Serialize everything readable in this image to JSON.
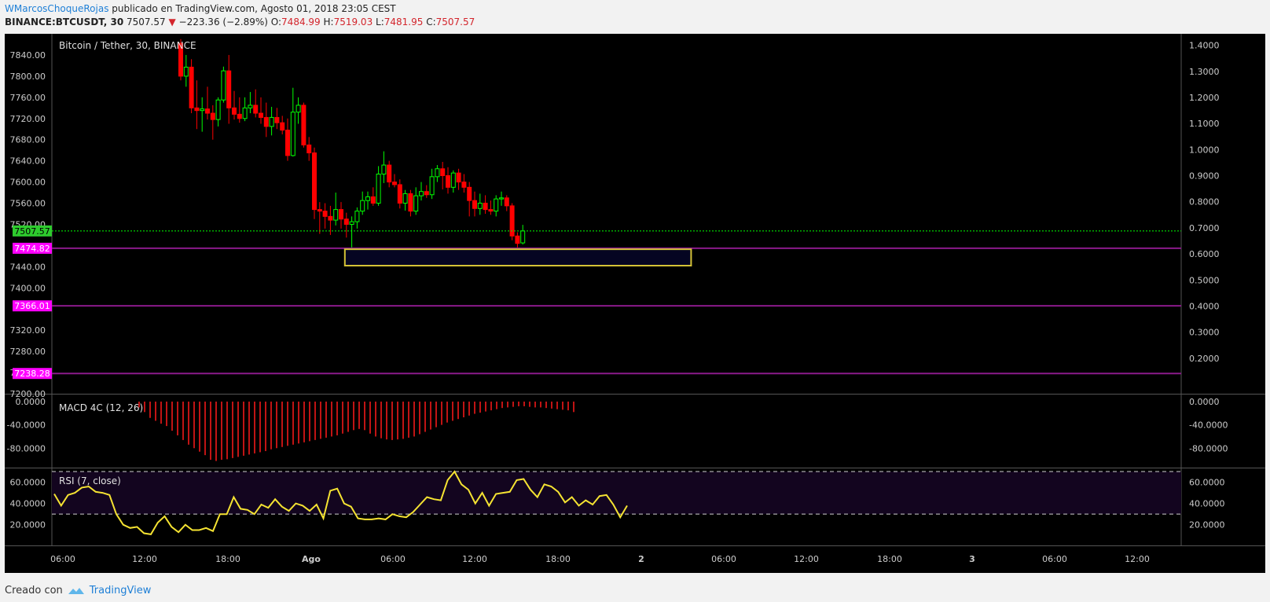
{
  "header": {
    "author": "WMarcosChoqueRojas",
    "published": "publicado en TradingView.com, Agosto 01, 2018 23:05 CEST",
    "symbol": "BINANCE:BTCUSDT, 30",
    "last": "7507.57",
    "change": "−223.36 (−2.89%)",
    "o_label": "O:",
    "o_value": "7484.99",
    "h_label": "H:",
    "h_value": "7519.03",
    "l_label": "L:",
    "l_value": "7481.95",
    "c_label": "C:",
    "c_value": "7507.57"
  },
  "footer": {
    "created": "Creado con",
    "brand": "TradingView"
  },
  "chart_data": [
    {
      "type": "candlestick",
      "title": "Bitcoin / Tether, 30, BINANCE",
      "ylim": [
        7200,
        7880
      ],
      "y_ticks": [
        7240,
        7280,
        7320,
        7400,
        7440,
        7560,
        7600,
        7640,
        7680,
        7720,
        7760,
        7800,
        7840
      ],
      "y_tick_labels": [
        "7240.00",
        "7280.00",
        "7320.00",
        "7400.00",
        "7440.00",
        "7560.00",
        "7600.00",
        "7640.00",
        "7680.00",
        "7720.00",
        "7760.00",
        "7800.00",
        "7840.00"
      ],
      "partial_tick_labels": [
        "7520.00",
        "7200.00"
      ],
      "right_axis": {
        "ylim": [
          0.1,
          1.42
        ],
        "ticks": [
          "0.2000",
          "0.3000",
          "0.4000",
          "0.5000",
          "0.6000",
          "0.7000",
          "0.8000",
          "0.9000",
          "1.0000",
          "1.1000",
          "1.2000",
          "1.3000",
          "1.4000"
        ]
      },
      "x_ticks": [
        "06:00",
        "12:00",
        "18:00",
        "Ago",
        "06:00",
        "12:00",
        "18:00",
        "2",
        "06:00",
        "12:00",
        "18:00",
        "3",
        "06:00",
        "12:00"
      ],
      "candles": [
        [
          7862,
          7870,
          7792,
          7800
        ],
        [
          7800,
          7840,
          7780,
          7817
        ],
        [
          7817,
          7832,
          7730,
          7740
        ],
        [
          7740,
          7792,
          7700,
          7735
        ],
        [
          7735,
          7760,
          7695,
          7738
        ],
        [
          7738,
          7780,
          7718,
          7730
        ],
        [
          7730,
          7745,
          7680,
          7718
        ],
        [
          7718,
          7760,
          7705,
          7755
        ],
        [
          7755,
          7818,
          7750,
          7810
        ],
        [
          7810,
          7840,
          7710,
          7740
        ],
        [
          7740,
          7772,
          7718,
          7728
        ],
        [
          7728,
          7760,
          7712,
          7720
        ],
        [
          7720,
          7760,
          7715,
          7740
        ],
        [
          7740,
          7770,
          7730,
          7745
        ],
        [
          7745,
          7775,
          7722,
          7730
        ],
        [
          7730,
          7760,
          7710,
          7722
        ],
        [
          7722,
          7750,
          7685,
          7705
        ],
        [
          7705,
          7742,
          7688,
          7722
        ],
        [
          7722,
          7740,
          7700,
          7712
        ],
        [
          7712,
          7725,
          7690,
          7698
        ],
        [
          7698,
          7720,
          7640,
          7650
        ],
        [
          7650,
          7778,
          7648,
          7732
        ],
        [
          7732,
          7760,
          7710,
          7745
        ],
        [
          7745,
          7750,
          7665,
          7670
        ],
        [
          7670,
          7685,
          7640,
          7655
        ],
        [
          7655,
          7665,
          7530,
          7548
        ],
        [
          7548,
          7562,
          7502,
          7545
        ],
        [
          7545,
          7560,
          7512,
          7535
        ],
        [
          7535,
          7555,
          7500,
          7528
        ],
        [
          7528,
          7580,
          7518,
          7548
        ],
        [
          7548,
          7562,
          7512,
          7530
        ],
        [
          7530,
          7542,
          7495,
          7520
        ],
        [
          7520,
          7535,
          7462,
          7525
        ],
        [
          7525,
          7552,
          7512,
          7545
        ],
        [
          7545,
          7582,
          7538,
          7565
        ],
        [
          7565,
          7582,
          7548,
          7572
        ],
        [
          7572,
          7590,
          7555,
          7560
        ],
        [
          7560,
          7630,
          7555,
          7615
        ],
        [
          7615,
          7658,
          7598,
          7632
        ],
        [
          7632,
          7640,
          7590,
          7600
        ],
        [
          7600,
          7615,
          7590,
          7595
        ],
        [
          7595,
          7605,
          7550,
          7560
        ],
        [
          7560,
          7585,
          7546,
          7578
        ],
        [
          7578,
          7585,
          7535,
          7545
        ],
        [
          7545,
          7590,
          7538,
          7574
        ],
        [
          7574,
          7600,
          7565,
          7582
        ],
        [
          7582,
          7594,
          7570,
          7576
        ],
        [
          7576,
          7625,
          7568,
          7610
        ],
        [
          7610,
          7632,
          7600,
          7625
        ],
        [
          7625,
          7638,
          7586,
          7612
        ],
        [
          7612,
          7628,
          7578,
          7590
        ],
        [
          7590,
          7622,
          7580,
          7617
        ],
        [
          7617,
          7625,
          7585,
          7600
        ],
        [
          7600,
          7615,
          7580,
          7590
        ],
        [
          7590,
          7600,
          7535,
          7565
        ],
        [
          7565,
          7582,
          7535,
          7550
        ],
        [
          7550,
          7578,
          7538,
          7560
        ],
        [
          7560,
          7575,
          7540,
          7548
        ],
        [
          7548,
          7565,
          7538,
          7545
        ],
        [
          7545,
          7575,
          7535,
          7568
        ],
        [
          7568,
          7582,
          7555,
          7570
        ],
        [
          7570,
          7575,
          7545,
          7555
        ],
        [
          7555,
          7560,
          7490,
          7498
        ],
        [
          7498,
          7505,
          7475,
          7484
        ],
        [
          7484.99,
          7519.03,
          7481.95,
          7507.57
        ]
      ],
      "price_line": {
        "value": 7507.57,
        "label": "7507.57",
        "color": "#00ff00"
      },
      "horizontal_levels": [
        {
          "value": 7474.82,
          "label": "7474.82"
        },
        {
          "value": 7366.01,
          "label": "7366.01"
        },
        {
          "value": 7238.28,
          "label": "7238.28"
        }
      ],
      "zone": {
        "y_top": 7473,
        "y_bottom": 7442,
        "from_candle": 31,
        "to_candle": 95.5
      },
      "colors": {
        "up": "#00ff00",
        "down": "#ff0000",
        "level": "#ff00ff",
        "zone": "#d4c236",
        "axis_text": "#cccccc"
      }
    },
    {
      "type": "bar",
      "title": "MACD 4C (12, 26)",
      "ylim": [
        -108,
        0
      ],
      "y_tick_labels": [
        "0.0000",
        "-40.0000",
        "-80.0000"
      ],
      "y_ticks": [
        0,
        -40,
        -80
      ],
      "values": [
        -10,
        -18,
        -28,
        -33,
        -38,
        -42,
        -50,
        -58,
        -66,
        -74,
        -80,
        -86,
        -92,
        -100,
        -102,
        -100,
        -99,
        -97,
        -95,
        -93,
        -91,
        -89,
        -87,
        -85,
        -82,
        -80,
        -78,
        -76,
        -74,
        -72,
        -70,
        -68,
        -66,
        -64,
        -62,
        -60,
        -58,
        -55,
        -52,
        -49,
        -47,
        -49,
        -55,
        -60,
        -63,
        -65,
        -66,
        -65,
        -64,
        -62,
        -60,
        -56,
        -52,
        -48,
        -44,
        -40,
        -36,
        -33,
        -30,
        -27,
        -24,
        -21,
        -19,
        -17,
        -15,
        -13,
        -11,
        -10,
        -9,
        -8,
        -8,
        -9,
        -10,
        -10,
        -11,
        -12,
        -13,
        -14,
        -15,
        -18
      ],
      "color": "#c01414"
    },
    {
      "type": "line",
      "title": "RSI (7, close)",
      "ylim": [
        5,
        73
      ],
      "y_tick_labels": [
        "60.0000",
        "40.0000",
        "20.0000"
      ],
      "y_ticks": [
        60,
        40,
        20
      ],
      "bands": [
        70,
        30
      ],
      "values": [
        49,
        38,
        48,
        50,
        55,
        56,
        51,
        50,
        48,
        30,
        20,
        17,
        18,
        12,
        11,
        22,
        28,
        18,
        13,
        20,
        15,
        15,
        17,
        14,
        30,
        30,
        46,
        35,
        34,
        30,
        39,
        36,
        44,
        37,
        33,
        40,
        38,
        33,
        39,
        26,
        52,
        54,
        40,
        37,
        26,
        25,
        25,
        26,
        25,
        30,
        28,
        27,
        32,
        39,
        46,
        44,
        43,
        62,
        70,
        58,
        53,
        40,
        50,
        38,
        49,
        50,
        51,
        62,
        63,
        53,
        46,
        58,
        56,
        51,
        41,
        46,
        38,
        43,
        39,
        47,
        48,
        39,
        27,
        38
      ],
      "color": "#f5e332"
    }
  ]
}
